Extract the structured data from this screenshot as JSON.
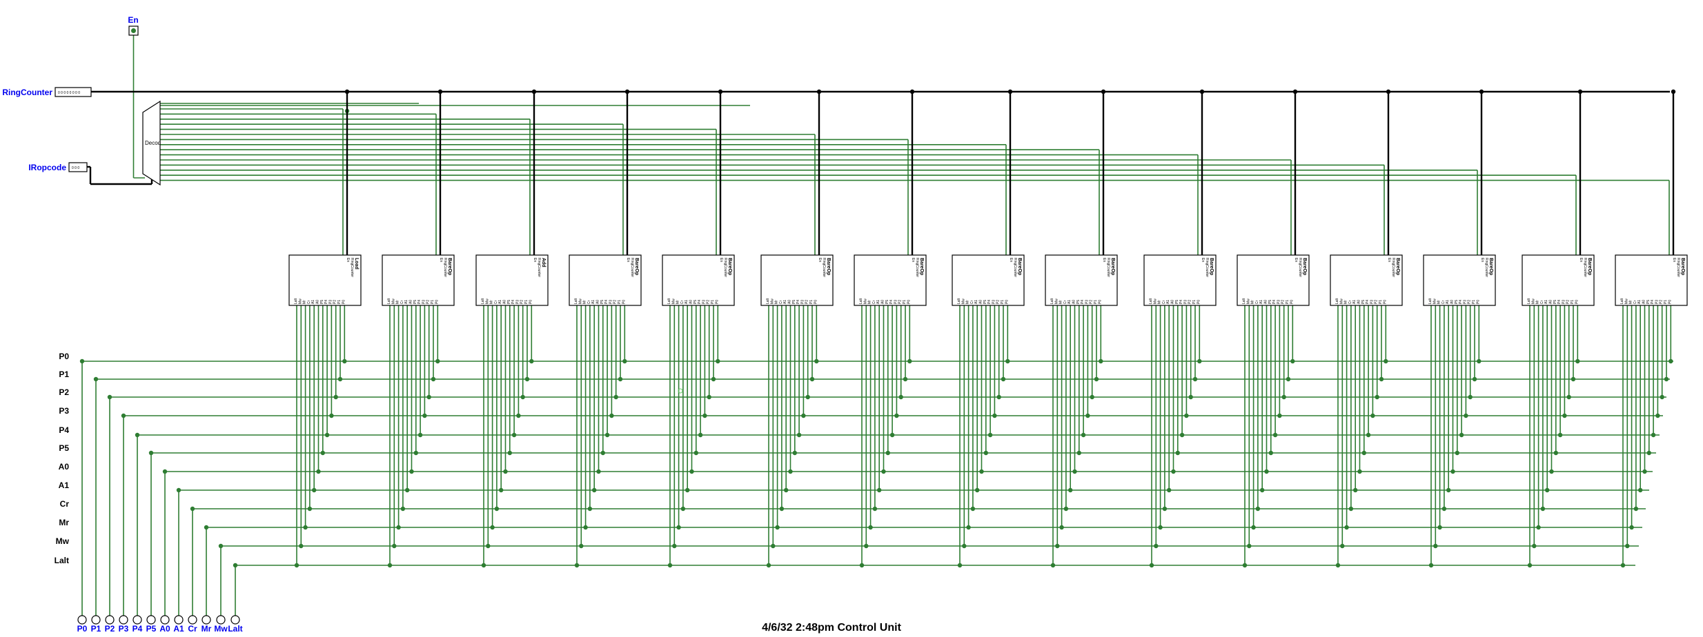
{
  "colors": {
    "wire": "#2e7d32",
    "bus": "#000000",
    "pin": "#0000ee",
    "background": "#ffffff"
  },
  "inputs": {
    "enable": "En",
    "ring_counter": "RingCounter",
    "ir_opcode": "IRopcode"
  },
  "decoder_label": "Decod",
  "control_lines": [
    "P0",
    "P1",
    "P2",
    "P3",
    "P4",
    "P5",
    "A0",
    "A1",
    "Cr",
    "Mr",
    "Mw",
    "Lalt"
  ],
  "output_pins": [
    "P0",
    "P1",
    "P2",
    "P3",
    "P4",
    "P5",
    "A0",
    "A1",
    "Cr",
    "Mr",
    "Mw",
    "Lalt"
  ],
  "subcircuit_pin_labels": {
    "enable": "En",
    "counter": "RingCounter",
    "outputs": [
      "Lalt",
      "Mw",
      "Mr",
      "Cr",
      "A1",
      "A0",
      "P5",
      "P4",
      "P3",
      "P2",
      "P1",
      "P0"
    ]
  },
  "subcircuits": [
    "Load",
    "BareOp",
    "Add",
    "BareOp",
    "BareOp",
    "BareOp",
    "BareOp",
    "BareOp",
    "BareOp",
    "BareOp",
    "BareOp",
    "BareOp",
    "BareOp",
    "BareOp",
    "BareOp"
  ],
  "caption": "4/6/32 2:48pm Control Unit"
}
